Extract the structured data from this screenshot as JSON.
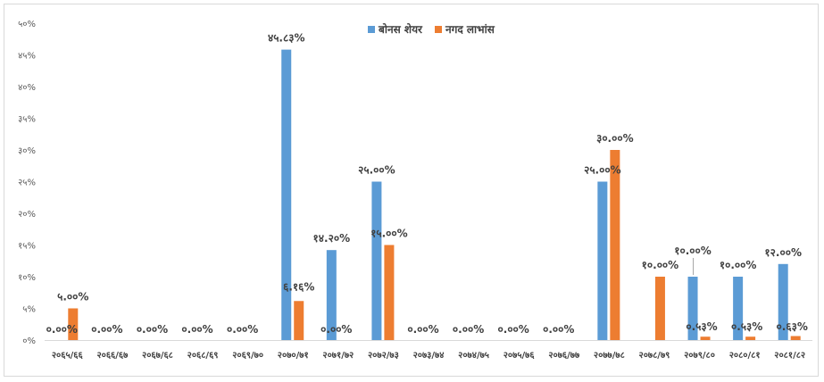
{
  "chart_data": {
    "type": "bar",
    "categories": [
      "२०६५/६६",
      "२०६६/६७",
      "२०६७/६८",
      "२०६८/६९",
      "२०६९/७०",
      "२०७०/७१",
      "२०७१/७२",
      "२०७२/७३",
      "२०७३/७४",
      "२०७४/७५",
      "२०७५/७६",
      "२०७६/७७",
      "२०७७/७८",
      "२०७८/७९",
      "२०७९/८०",
      "२०८०/८१",
      "२०८१/८२"
    ],
    "series": [
      {
        "name": "बोनस शेयर",
        "color": "#5b9bd5",
        "values": [
          0,
          0,
          0,
          0,
          0,
          45.83,
          14.2,
          25,
          0,
          0,
          0,
          0,
          25,
          null,
          10,
          10,
          12
        ],
        "labels": [
          "०.००%",
          "०.००%",
          "०.००%",
          "०.००%",
          "०.००%",
          "४५.८३%",
          "१४.२०%",
          "२५.००%",
          "०.००%",
          "०.००%",
          "०.००%",
          "०.००%",
          "२५.००%",
          "",
          "१०.००%",
          "१०.००%",
          "१२.००%"
        ]
      },
      {
        "name": "नगद लाभांस",
        "color": "#ed7d31",
        "values": [
          5,
          null,
          null,
          null,
          null,
          6.16,
          0,
          15,
          null,
          null,
          null,
          null,
          30,
          10,
          0.53,
          0.53,
          0.63
        ],
        "labels": [
          "५.००%",
          "",
          "",
          "",
          "",
          "६.१६%",
          "०.००%",
          "१५.००%",
          "",
          "",
          "",
          "",
          "३०.००%",
          "१०.००%",
          "०.५३%",
          "०.५३%",
          "०.६३%"
        ]
      }
    ],
    "yticks": [
      "०%",
      "५%",
      "१०%",
      "१५%",
      "२०%",
      "२५%",
      "३०%",
      "३५%",
      "४०%",
      "४५%",
      "५०%"
    ],
    "ylim": [
      0,
      50
    ],
    "legend_position": "top-center"
  }
}
